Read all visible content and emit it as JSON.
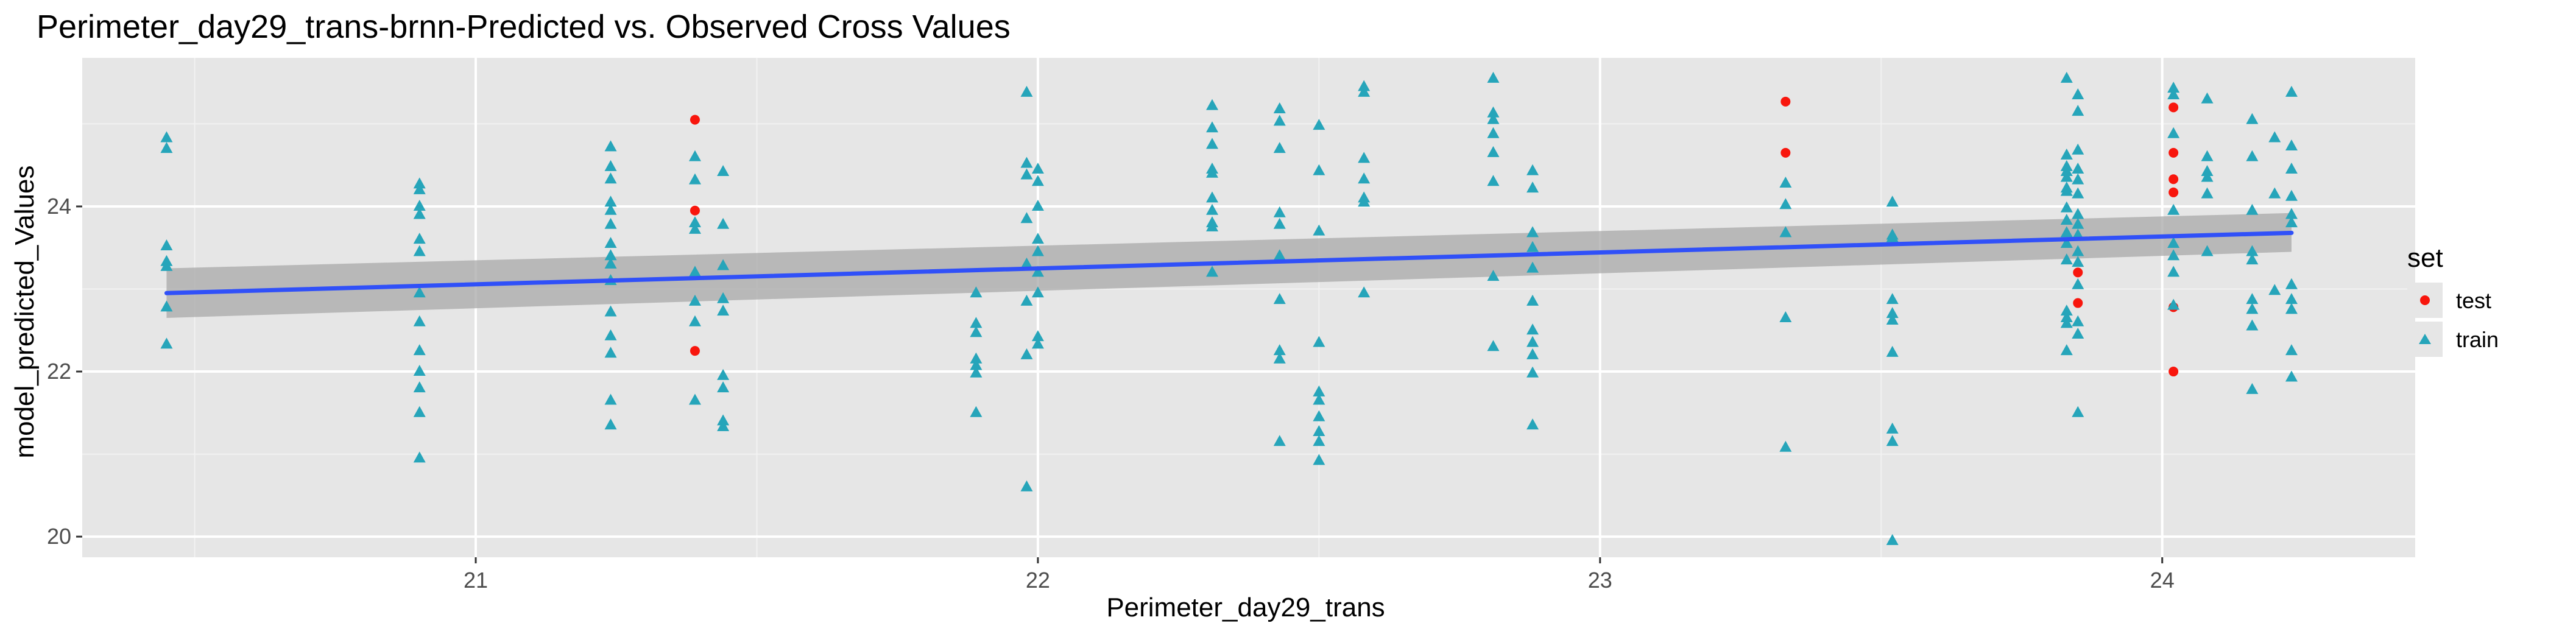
{
  "chart_data": {
    "type": "scatter",
    "title": "Perimeter_day29_trans-brnn-Predicted vs. Observed Cross Values",
    "xlabel": "Perimeter_day29_trans",
    "ylabel": "model_predicted_Values",
    "xlim": [
      20.3,
      24.45
    ],
    "ylim": [
      19.75,
      25.8
    ],
    "x_ticks": [
      21,
      22,
      23,
      24
    ],
    "x_tick_labels": [
      "21",
      "22",
      "23",
      "24"
    ],
    "y_ticks": [
      20,
      22,
      24
    ],
    "y_tick_labels": [
      "20",
      "22",
      "24"
    ],
    "grid": true,
    "legend": {
      "title": "set",
      "position": "right",
      "entries": [
        {
          "label": "test",
          "shape": "circle",
          "color": "#F8160D"
        },
        {
          "label": "train",
          "shape": "triangle",
          "color": "#26A5BA"
        }
      ]
    },
    "series": [
      {
        "name": "test",
        "shape": "circle",
        "color": "#F8160D",
        "points": [
          [
            21.39,
            25.05
          ],
          [
            21.39,
            23.95
          ],
          [
            21.39,
            22.25
          ],
          [
            23.33,
            25.27
          ],
          [
            23.33,
            24.65
          ],
          [
            23.85,
            23.2
          ],
          [
            23.85,
            22.83
          ],
          [
            24.02,
            25.2
          ],
          [
            24.02,
            24.65
          ],
          [
            24.02,
            24.33
          ],
          [
            24.02,
            24.17
          ],
          [
            24.02,
            22.78
          ],
          [
            24.02,
            22.0
          ]
        ]
      },
      {
        "name": "train",
        "shape": "triangle",
        "color": "#26A5BA",
        "points": [
          [
            20.45,
            24.83
          ],
          [
            20.45,
            24.7
          ],
          [
            20.45,
            23.52
          ],
          [
            20.45,
            23.33
          ],
          [
            20.45,
            23.27
          ],
          [
            20.45,
            22.78
          ],
          [
            20.45,
            22.33
          ],
          [
            20.9,
            24.27
          ],
          [
            20.9,
            24.2
          ],
          [
            20.9,
            24.0
          ],
          [
            20.9,
            23.9
          ],
          [
            20.9,
            23.6
          ],
          [
            20.9,
            23.45
          ],
          [
            20.9,
            22.95
          ],
          [
            20.9,
            22.6
          ],
          [
            20.9,
            22.25
          ],
          [
            20.9,
            22.0
          ],
          [
            20.9,
            21.8
          ],
          [
            20.9,
            21.5
          ],
          [
            20.9,
            20.95
          ],
          [
            21.24,
            24.72
          ],
          [
            21.24,
            24.48
          ],
          [
            21.24,
            24.33
          ],
          [
            21.24,
            24.05
          ],
          [
            21.24,
            23.95
          ],
          [
            21.24,
            23.78
          ],
          [
            21.24,
            23.55
          ],
          [
            21.24,
            23.4
          ],
          [
            21.24,
            23.3
          ],
          [
            21.24,
            23.1
          ],
          [
            21.24,
            22.72
          ],
          [
            21.24,
            22.43
          ],
          [
            21.24,
            22.22
          ],
          [
            21.24,
            21.65
          ],
          [
            21.24,
            21.35
          ],
          [
            21.39,
            24.6
          ],
          [
            21.39,
            24.32
          ],
          [
            21.39,
            23.8
          ],
          [
            21.39,
            23.72
          ],
          [
            21.39,
            23.2
          ],
          [
            21.39,
            22.85
          ],
          [
            21.39,
            22.6
          ],
          [
            21.39,
            21.65
          ],
          [
            21.44,
            24.42
          ],
          [
            21.44,
            23.78
          ],
          [
            21.44,
            23.28
          ],
          [
            21.44,
            22.88
          ],
          [
            21.44,
            22.73
          ],
          [
            21.44,
            21.95
          ],
          [
            21.44,
            21.8
          ],
          [
            21.44,
            21.4
          ],
          [
            21.44,
            21.33
          ],
          [
            21.89,
            22.95
          ],
          [
            21.89,
            22.58
          ],
          [
            21.89,
            22.47
          ],
          [
            21.89,
            22.15
          ],
          [
            21.89,
            22.07
          ],
          [
            21.89,
            21.98
          ],
          [
            21.89,
            21.5
          ],
          [
            21.98,
            25.38
          ],
          [
            21.98,
            24.52
          ],
          [
            21.98,
            24.38
          ],
          [
            21.98,
            23.85
          ],
          [
            21.98,
            23.3
          ],
          [
            21.98,
            22.85
          ],
          [
            21.98,
            22.2
          ],
          [
            21.98,
            20.6
          ],
          [
            22.0,
            24.45
          ],
          [
            22.0,
            24.3
          ],
          [
            22.0,
            24.0
          ],
          [
            22.0,
            23.6
          ],
          [
            22.0,
            23.45
          ],
          [
            22.0,
            23.2
          ],
          [
            22.0,
            22.95
          ],
          [
            22.0,
            22.42
          ],
          [
            22.0,
            22.33
          ],
          [
            22.31,
            25.22
          ],
          [
            22.31,
            24.95
          ],
          [
            22.31,
            24.75
          ],
          [
            22.31,
            24.45
          ],
          [
            22.31,
            24.4
          ],
          [
            22.31,
            24.1
          ],
          [
            22.31,
            23.95
          ],
          [
            22.31,
            23.8
          ],
          [
            22.31,
            23.75
          ],
          [
            22.31,
            23.2
          ],
          [
            22.43,
            25.18
          ],
          [
            22.43,
            25.03
          ],
          [
            22.43,
            24.7
          ],
          [
            22.43,
            23.92
          ],
          [
            22.43,
            23.78
          ],
          [
            22.43,
            23.4
          ],
          [
            22.43,
            22.87
          ],
          [
            22.43,
            22.25
          ],
          [
            22.43,
            22.15
          ],
          [
            22.43,
            21.15
          ],
          [
            22.5,
            24.98
          ],
          [
            22.5,
            24.43
          ],
          [
            22.5,
            23.7
          ],
          [
            22.5,
            22.35
          ],
          [
            22.5,
            21.75
          ],
          [
            22.5,
            21.65
          ],
          [
            22.5,
            21.45
          ],
          [
            22.5,
            21.27
          ],
          [
            22.5,
            21.15
          ],
          [
            22.5,
            20.92
          ],
          [
            22.58,
            25.45
          ],
          [
            22.58,
            25.38
          ],
          [
            22.58,
            24.58
          ],
          [
            22.58,
            24.33
          ],
          [
            22.58,
            24.1
          ],
          [
            22.58,
            24.05
          ],
          [
            22.58,
            22.95
          ],
          [
            22.81,
            25.55
          ],
          [
            22.81,
            25.13
          ],
          [
            22.81,
            25.05
          ],
          [
            22.81,
            24.88
          ],
          [
            22.81,
            24.65
          ],
          [
            22.81,
            24.3
          ],
          [
            22.81,
            23.15
          ],
          [
            22.81,
            22.3
          ],
          [
            22.88,
            24.43
          ],
          [
            22.88,
            24.22
          ],
          [
            22.88,
            23.68
          ],
          [
            22.88,
            23.5
          ],
          [
            22.88,
            23.25
          ],
          [
            22.88,
            22.85
          ],
          [
            22.88,
            22.5
          ],
          [
            22.88,
            22.35
          ],
          [
            22.88,
            22.2
          ],
          [
            22.88,
            21.98
          ],
          [
            22.88,
            21.35
          ],
          [
            23.33,
            24.28
          ],
          [
            23.33,
            24.02
          ],
          [
            23.33,
            23.68
          ],
          [
            23.33,
            22.65
          ],
          [
            23.33,
            21.08
          ],
          [
            23.52,
            24.05
          ],
          [
            23.52,
            23.65
          ],
          [
            23.52,
            23.62
          ],
          [
            23.52,
            22.87
          ],
          [
            23.52,
            22.7
          ],
          [
            23.52,
            22.62
          ],
          [
            23.52,
            22.23
          ],
          [
            23.52,
            21.3
          ],
          [
            23.52,
            21.15
          ],
          [
            23.52,
            19.95
          ],
          [
            23.83,
            25.55
          ],
          [
            23.83,
            24.62
          ],
          [
            23.83,
            24.48
          ],
          [
            23.83,
            24.42
          ],
          [
            23.83,
            24.35
          ],
          [
            23.83,
            24.22
          ],
          [
            23.83,
            24.18
          ],
          [
            23.83,
            23.98
          ],
          [
            23.83,
            23.83
          ],
          [
            23.83,
            23.68
          ],
          [
            23.83,
            23.55
          ],
          [
            23.83,
            23.35
          ],
          [
            23.83,
            22.73
          ],
          [
            23.83,
            22.65
          ],
          [
            23.83,
            22.58
          ],
          [
            23.83,
            22.25
          ],
          [
            23.85,
            25.35
          ],
          [
            23.85,
            25.15
          ],
          [
            23.85,
            24.68
          ],
          [
            23.85,
            24.45
          ],
          [
            23.85,
            24.32
          ],
          [
            23.85,
            24.15
          ],
          [
            23.85,
            23.9
          ],
          [
            23.85,
            23.78
          ],
          [
            23.85,
            23.65
          ],
          [
            23.85,
            23.45
          ],
          [
            23.85,
            23.32
          ],
          [
            23.85,
            23.05
          ],
          [
            23.85,
            22.6
          ],
          [
            23.85,
            22.45
          ],
          [
            23.85,
            21.5
          ],
          [
            24.02,
            25.43
          ],
          [
            24.02,
            25.35
          ],
          [
            24.02,
            24.88
          ],
          [
            24.02,
            23.95
          ],
          [
            24.02,
            23.55
          ],
          [
            24.02,
            23.4
          ],
          [
            24.02,
            23.2
          ],
          [
            24.02,
            22.8
          ],
          [
            24.08,
            25.3
          ],
          [
            24.08,
            24.6
          ],
          [
            24.08,
            24.42
          ],
          [
            24.08,
            24.35
          ],
          [
            24.08,
            24.15
          ],
          [
            24.08,
            23.45
          ],
          [
            24.16,
            25.05
          ],
          [
            24.16,
            24.6
          ],
          [
            24.16,
            23.95
          ],
          [
            24.16,
            23.45
          ],
          [
            24.16,
            23.35
          ],
          [
            24.16,
            22.87
          ],
          [
            24.16,
            22.75
          ],
          [
            24.16,
            22.55
          ],
          [
            24.16,
            21.78
          ],
          [
            24.2,
            24.83
          ],
          [
            24.2,
            24.15
          ],
          [
            24.2,
            22.98
          ],
          [
            24.23,
            25.38
          ],
          [
            24.23,
            24.73
          ],
          [
            24.23,
            24.45
          ],
          [
            24.23,
            24.12
          ],
          [
            24.23,
            23.9
          ],
          [
            24.23,
            23.8
          ],
          [
            24.23,
            23.05
          ],
          [
            24.23,
            22.87
          ],
          [
            24.23,
            22.75
          ],
          [
            24.23,
            22.25
          ],
          [
            24.23,
            21.93
          ]
        ]
      }
    ],
    "trend_line": {
      "color": "#3050F8",
      "band_color": "#A8A8A8",
      "x": [
        20.45,
        24.23
      ],
      "y": [
        22.95,
        23.68
      ],
      "ci_lower": [
        22.65,
        23.45
      ],
      "ci_upper": [
        23.25,
        23.92
      ]
    }
  },
  "colors": {
    "panel_background": "#E6E6E6",
    "grid_major": "#FFFFFF",
    "grid_minor": "#F2F2F2",
    "tick_text": "#4D4D4D",
    "legend_key_background": "#E6E6E6"
  }
}
